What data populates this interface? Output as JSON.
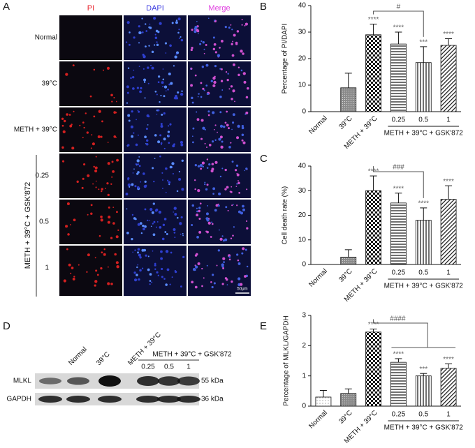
{
  "panel_labels": [
    "A",
    "B",
    "C",
    "D",
    "E"
  ],
  "microscopy": {
    "columns": [
      "PI",
      "DAPI",
      "Merge"
    ],
    "rows": [
      "Normal",
      "39°C",
      "METH + 39°C",
      "0.25",
      "0.5",
      "1"
    ],
    "group_label": "METH + 39°C + GSK'872",
    "scale_bar": "50μm"
  },
  "western_blot": {
    "lanes": [
      "Normal",
      "39°C",
      "METH + 39°C",
      "0.25",
      "0.5",
      "1"
    ],
    "group_label": "METH + 39°C + GSK'872",
    "proteins": [
      "MLKL",
      "GAPDH"
    ],
    "sizes": [
      "55 kDa",
      "36 kDa"
    ]
  },
  "chart_data": [
    {
      "type": "bar",
      "ylabel": "Percentage of PI/DAPI",
      "categories": [
        "Normal",
        "39°C",
        "METH + 39°C",
        "0.25",
        "0.5",
        "1"
      ],
      "values": [
        0,
        9,
        29,
        25.5,
        18.5,
        25
      ],
      "errors": [
        null,
        5.5,
        4,
        4.5,
        6,
        2.5
      ],
      "significance": [
        null,
        null,
        "****",
        "****",
        "***",
        "****"
      ],
      "comparison": "#",
      "group_label": "METH + 39°C + GSK'872",
      "ylim": [
        0,
        40
      ],
      "yticks": [
        0,
        10,
        20,
        30,
        40
      ]
    },
    {
      "type": "bar",
      "ylabel": "Cell death rate (%)",
      "categories": [
        "Normal",
        "39°C",
        "METH + 39°C",
        "0.25",
        "0.5",
        "1"
      ],
      "values": [
        0,
        3,
        30,
        25,
        18,
        26.5
      ],
      "errors": [
        null,
        3,
        6,
        4,
        5,
        5.5
      ],
      "significance": [
        null,
        null,
        "****",
        "****",
        "****",
        "****"
      ],
      "comparison": "###",
      "group_label": "METH + 39°C + GSK'872",
      "ylim": [
        0,
        40
      ],
      "yticks": [
        0,
        10,
        20,
        30,
        40
      ]
    },
    {
      "type": "bar",
      "ylabel": "Percentage of MLKL/GAPDH",
      "categories": [
        "Normal",
        "39°C",
        "METH + 39°C",
        "0.25",
        "0.5",
        "1"
      ],
      "values": [
        0.3,
        0.42,
        2.45,
        1.45,
        1.0,
        1.25
      ],
      "errors": [
        0.22,
        0.15,
        0.1,
        0.12,
        0.08,
        0.15
      ],
      "significance": [
        null,
        null,
        "****",
        "****",
        "***",
        "****"
      ],
      "comparison": "####",
      "group_label": "METH + 39°C + GSK'872",
      "ylim": [
        0,
        3
      ],
      "yticks": [
        0,
        1,
        2,
        3
      ]
    }
  ]
}
